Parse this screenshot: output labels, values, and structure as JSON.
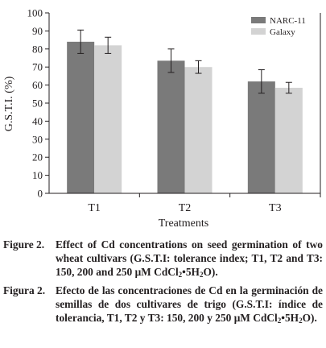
{
  "chart_data": {
    "type": "bar",
    "ylabel": "G.S.T.I. (%)",
    "xlabel": "Treatments",
    "ylim": [
      0,
      100
    ],
    "yticks": [
      0,
      10,
      20,
      30,
      40,
      50,
      60,
      70,
      80,
      90,
      100
    ],
    "categories": [
      "T1",
      "T2",
      "T3"
    ],
    "series": [
      {
        "name": "NARC-11",
        "color": "#7a7a7a",
        "values": [
          84,
          73.5,
          62
        ],
        "errors": [
          6.5,
          6.5,
          6.5
        ]
      },
      {
        "name": "Galaxy",
        "color": "#d3d3d3",
        "values": [
          82,
          70,
          58.5
        ],
        "errors": [
          4.5,
          3.5,
          3
        ]
      }
    ],
    "legend_position": "top-right",
    "grid": false
  },
  "captions": [
    {
      "label": "Figure 2.",
      "text_before": "Effect of Cd concentrations on seed germination of two wheat cultivars (G.S.T.I: tolerance index; T1, T2 and T3: 150, 200 and 250 μM CdCl",
      "sub1": "2",
      "mid": "•5H",
      "sub2": "2",
      "end": "O)."
    },
    {
      "label": "Figura 2.",
      "text_before": "Efecto de las concentraciones de Cd en la germinación de semillas de dos cultivares de trigo (G.S.T.I: índice de tolerancia, T1, T2 y T3: 150, 200 y 250 μM CdCl",
      "sub1": "2",
      "mid": "•5H",
      "sub2": "2",
      "end": "O)."
    }
  ]
}
